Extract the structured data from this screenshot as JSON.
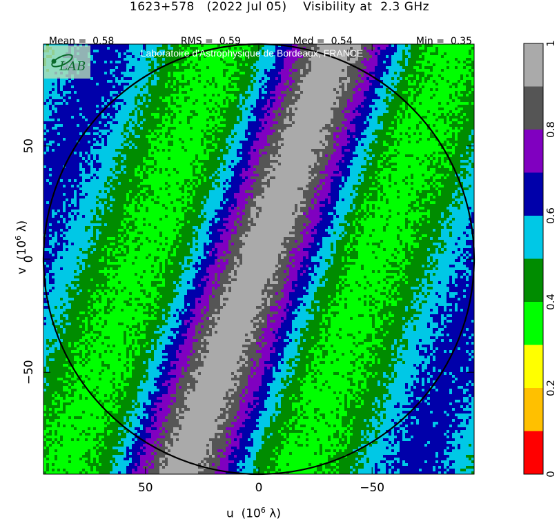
{
  "header": {
    "source": "1623+578",
    "date": "(2022 Jul 05)",
    "quantity": "Visibility at",
    "frequency": "2.3 GHz"
  },
  "stats": [
    {
      "label": "Mean =",
      "value": "0.58"
    },
    {
      "label": "RMS =",
      "value": "0.59"
    },
    {
      "label": "Med =",
      "value": "0.54"
    },
    {
      "label": "Min =",
      "value": "0.35"
    }
  ],
  "watermark": {
    "logo_text": "LAB",
    "text": "Laboratoire d'Astrophysique de Bordeaux, FRANCE"
  },
  "chart_data": {
    "type": "heatmap",
    "title": "1623+578 (2022 Jul 05) Visibility at 2.3 GHz",
    "xlabel": "u (10^6 λ)",
    "ylabel": "v (10^6 λ)",
    "x_unit_label": "u",
    "y_unit_label": "v",
    "axis_unit": "(10",
    "axis_exp": "6",
    "axis_unit_end": "λ)",
    "xlim": [
      95,
      -95
    ],
    "ylim": [
      -95,
      95
    ],
    "x_ticks": [
      50,
      0,
      -50
    ],
    "y_ticks": [
      50,
      0,
      -50
    ],
    "x_tick_labels": [
      "50",
      "0",
      "−50"
    ],
    "y_tick_labels": [
      "50",
      "0",
      "−50"
    ],
    "uv_circle_radius": 95,
    "band_angle_deg": 20,
    "band_center_value": 1.0,
    "band_min_value": 0.35,
    "band_period": 96,
    "colorbar": {
      "range": [
        0,
        1
      ],
      "ticks": [
        0,
        0.2,
        0.4,
        0.6,
        0.8,
        1
      ],
      "tick_labels": [
        "0",
        "0.2",
        "0.4",
        "0.6",
        "0.8",
        "1"
      ],
      "bins": [
        {
          "from": 0.0,
          "to": 0.1,
          "color": "#ff0000"
        },
        {
          "from": 0.1,
          "to": 0.2,
          "color": "#ffc000"
        },
        {
          "from": 0.2,
          "to": 0.3,
          "color": "#ffff00"
        },
        {
          "from": 0.3,
          "to": 0.4,
          "color": "#00ff00"
        },
        {
          "from": 0.4,
          "to": 0.5,
          "color": "#008c00"
        },
        {
          "from": 0.5,
          "to": 0.6,
          "color": "#00c8e6"
        },
        {
          "from": 0.6,
          "to": 0.7,
          "color": "#0000aa"
        },
        {
          "from": 0.7,
          "to": 0.8,
          "color": "#8000c0"
        },
        {
          "from": 0.8,
          "to": 0.9,
          "color": "#555555"
        },
        {
          "from": 0.9,
          "to": 1.0,
          "color": "#aaaaaa"
        }
      ]
    }
  }
}
